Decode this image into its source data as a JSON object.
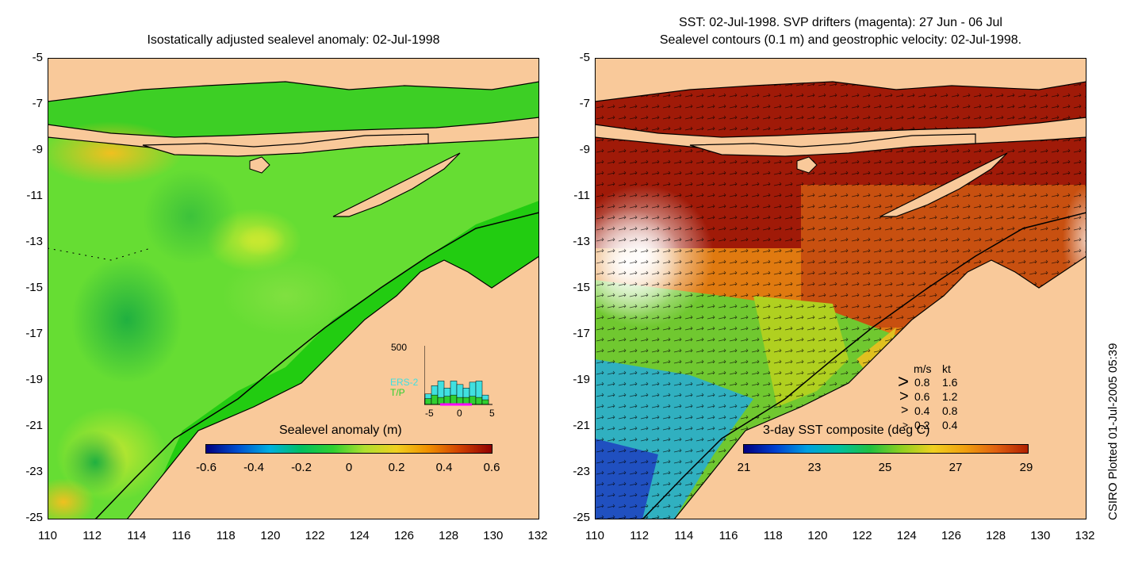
{
  "left": {
    "title": "Isostatically adjusted sealevel anomaly: 02-Jul-1998",
    "colorbar": {
      "label": "Sealevel anomaly (m)",
      "ticks": [
        "-0.6",
        "-0.4",
        "-0.2",
        "0",
        "0.2",
        "0.4",
        "0.6"
      ],
      "colors": [
        "#000080",
        "#0050d0",
        "#00b0e0",
        "#00c060",
        "#30d030",
        "#b0e030",
        "#f0d020",
        "#f09000",
        "#d04000",
        "#900000"
      ]
    },
    "inset": {
      "ymax": "500",
      "series": [
        "ERS-2",
        "T/P"
      ],
      "series_colors": [
        "#40e0e0",
        "#30d030"
      ],
      "xticks": [
        "-5",
        "0",
        "5"
      ],
      "bars_ers2": [
        90,
        160,
        200,
        140,
        200,
        170,
        140,
        190,
        200,
        80
      ],
      "bars_tp": [
        50,
        80,
        60,
        70,
        80,
        60,
        60,
        70,
        60,
        40
      ]
    }
  },
  "right": {
    "title_line1": "SST: 02-Jul-1998. SVP drifters (magenta): 27 Jun - 06 Jul",
    "title_line2": "Sealevel contours (0.1 m) and geostrophic velocity: 02-Jul-1998.",
    "colorbar": {
      "label": "3-day SST composite (deg C)",
      "ticks": [
        "21",
        "23",
        "25",
        "27",
        "29"
      ],
      "colors": [
        "#000080",
        "#0040d0",
        "#00a0e0",
        "#00c0a0",
        "#20c040",
        "#90d020",
        "#f0d020",
        "#f0a010",
        "#e06010",
        "#b02000"
      ]
    },
    "velocity_legend": {
      "header_ms": "m/s",
      "header_kt": "kt",
      "rows": [
        {
          "ms": "0.8",
          "kt": "1.6"
        },
        {
          "ms": "0.6",
          "kt": "1.2"
        },
        {
          "ms": "0.4",
          "kt": "0.8"
        },
        {
          "ms": "0.2",
          "kt": "0.4"
        }
      ]
    }
  },
  "axes": {
    "y_ticks": [
      "-5",
      "-7",
      "-9",
      "-11",
      "-13",
      "-15",
      "-17",
      "-19",
      "-21",
      "-23",
      "-25"
    ],
    "x_ticks": [
      "110",
      "112",
      "114",
      "116",
      "118",
      "120",
      "122",
      "124",
      "126",
      "128",
      "130",
      "132"
    ],
    "lon_range": [
      110,
      132
    ],
    "lat_range": [
      -25,
      -5
    ]
  },
  "credit": "CSIRO Plotted 01-Jul-2005 05:39",
  "colors": {
    "land": "#f9c99a",
    "ocean_green": "#33cc22",
    "coast": "#000000"
  }
}
